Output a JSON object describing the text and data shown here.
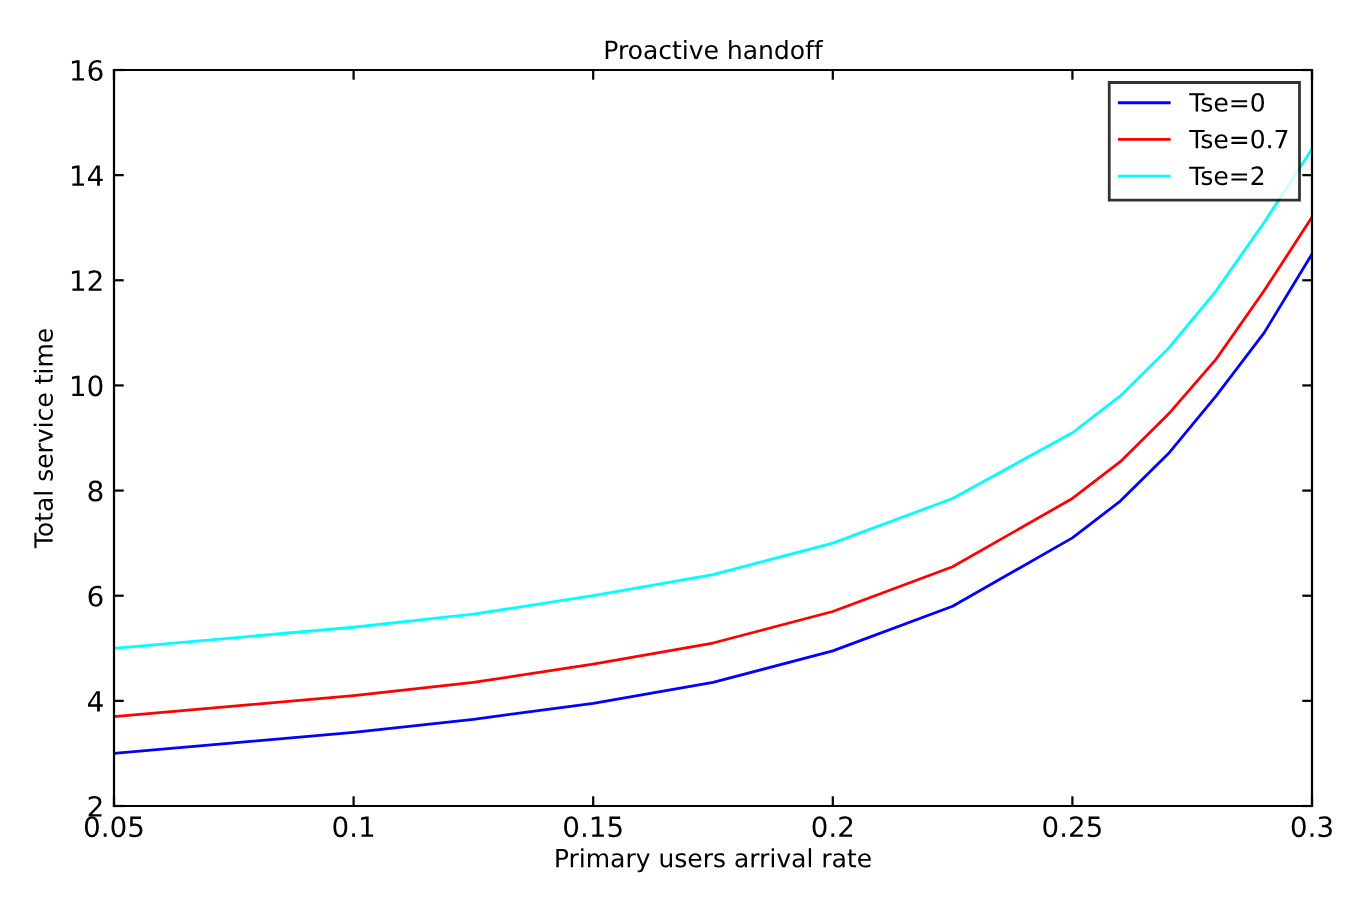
{
  "chart_data": {
    "type": "line",
    "title": "Proactive handoff",
    "xlabel": "Primary users arrival rate",
    "ylabel": "Total service time",
    "x": [
      0.05,
      0.075,
      0.1,
      0.125,
      0.15,
      0.175,
      0.2,
      0.225,
      0.25,
      0.26,
      0.27,
      0.28,
      0.29,
      0.3
    ],
    "series": [
      {
        "name": "Tse=0",
        "color": "#0000ff",
        "values": [
          3.0,
          3.2,
          3.4,
          3.65,
          3.95,
          4.35,
          4.95,
          5.8,
          7.1,
          7.8,
          8.7,
          9.8,
          11.0,
          12.5
        ]
      },
      {
        "name": "Tse=0.7",
        "color": "#ff0000",
        "values": [
          3.7,
          3.9,
          4.1,
          4.35,
          4.7,
          5.1,
          5.7,
          6.55,
          7.85,
          8.55,
          9.45,
          10.5,
          11.8,
          13.2
        ]
      },
      {
        "name": "Tse=2",
        "color": "#00ffff",
        "values": [
          5.0,
          5.2,
          5.4,
          5.65,
          6.0,
          6.4,
          7.0,
          7.85,
          9.1,
          9.8,
          10.7,
          11.8,
          13.1,
          14.5
        ]
      }
    ],
    "xlim": [
      0.05,
      0.3
    ],
    "xticks": [
      0.05,
      0.1,
      0.15,
      0.2,
      0.25,
      0.3
    ],
    "ylim": [
      2,
      16
    ],
    "yticks": [
      2,
      4,
      6,
      8,
      10,
      12,
      14,
      16
    ],
    "grid": false,
    "legend": "top right"
  }
}
